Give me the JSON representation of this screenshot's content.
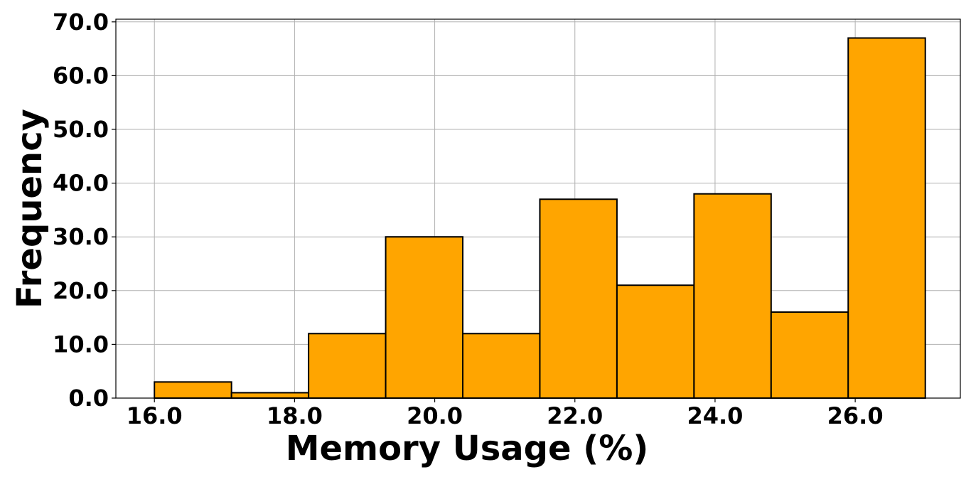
{
  "chart_data": {
    "type": "bar",
    "title": "",
    "xlabel": "Memory Usage (%)",
    "ylabel": "Frequency",
    "bar_color": "#ffa500",
    "edge_color": "#000000",
    "grid": true,
    "xlim": [
      15.45,
      27.5
    ],
    "ylim": [
      0,
      70.5
    ],
    "x_ticks": [
      16.0,
      18.0,
      20.0,
      22.0,
      24.0,
      26.0
    ],
    "x_tick_labels": [
      "16.0",
      "18.0",
      "20.0",
      "22.0",
      "24.0",
      "26.0"
    ],
    "y_ticks": [
      0,
      10,
      20,
      30,
      40,
      50,
      60,
      70
    ],
    "y_tick_labels": [
      "0.0",
      "10.0",
      "20.0",
      "30.0",
      "40.0",
      "50.0",
      "60.0",
      "70.0"
    ],
    "bins": [
      {
        "start": 16.0,
        "end": 17.1,
        "value": 3
      },
      {
        "start": 17.1,
        "end": 18.2,
        "value": 1
      },
      {
        "start": 18.2,
        "end": 19.3,
        "value": 12
      },
      {
        "start": 19.3,
        "end": 20.4,
        "value": 30
      },
      {
        "start": 20.4,
        "end": 21.5,
        "value": 12
      },
      {
        "start": 21.5,
        "end": 22.6,
        "value": 37
      },
      {
        "start": 22.6,
        "end": 23.7,
        "value": 21
      },
      {
        "start": 23.7,
        "end": 24.8,
        "value": 38
      },
      {
        "start": 24.8,
        "end": 25.9,
        "value": 16
      },
      {
        "start": 25.9,
        "end": 27.0,
        "value": 67
      }
    ]
  }
}
